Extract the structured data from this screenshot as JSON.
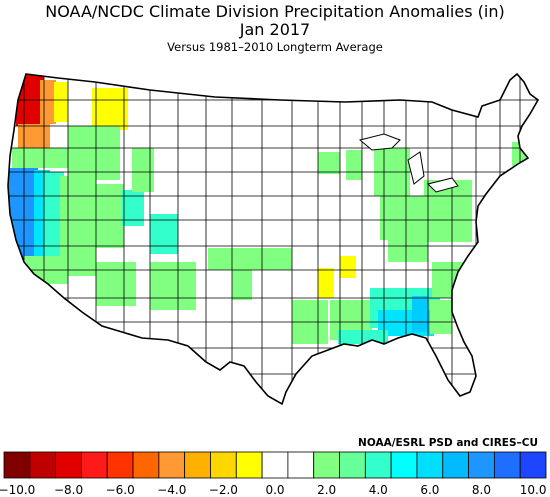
{
  "title": "NOAA/NCDC Climate Division Precipitation Anomalies (in)",
  "period": "Jan 2017",
  "subtitle": "Versus 1981–2010 Longterm Average",
  "credit": "NOAA/ESRL PSD and CIRES–CU",
  "legend": {
    "colors": [
      "#800000",
      "#c00000",
      "#e00000",
      "#ff1a1a",
      "#ff3300",
      "#ff6600",
      "#ff9933",
      "#ffb000",
      "#ffd700",
      "#ffff00",
      "#ffffff",
      "#ffffff",
      "#80ff80",
      "#66ff99",
      "#33ffcc",
      "#00ffff",
      "#00ddff",
      "#00bbff",
      "#1e96ff",
      "#1e6eff",
      "#1e46ff"
    ],
    "ticks": [
      "−10.0",
      "−8.0",
      "−6.0",
      "−4.0",
      "−2.0",
      "0.0",
      "2.0",
      "4.0",
      "6.0",
      "8.0",
      "10.0"
    ],
    "min": -10.0,
    "max": 10.0,
    "step": 1.0
  },
  "colors": {
    "land": "#ffffff",
    "border": "#000000",
    "wet_light": "#80ff80",
    "wet_teal": "#33ffcc",
    "wet_cyan": "#00e5ff",
    "wet_sky": "#00ccff",
    "wet_blue": "#1e96ff",
    "dry_yellow": "#ffff00",
    "dry_gold": "#ffd700",
    "dry_orange": "#ff9933",
    "dry_red": "#e00000"
  }
}
